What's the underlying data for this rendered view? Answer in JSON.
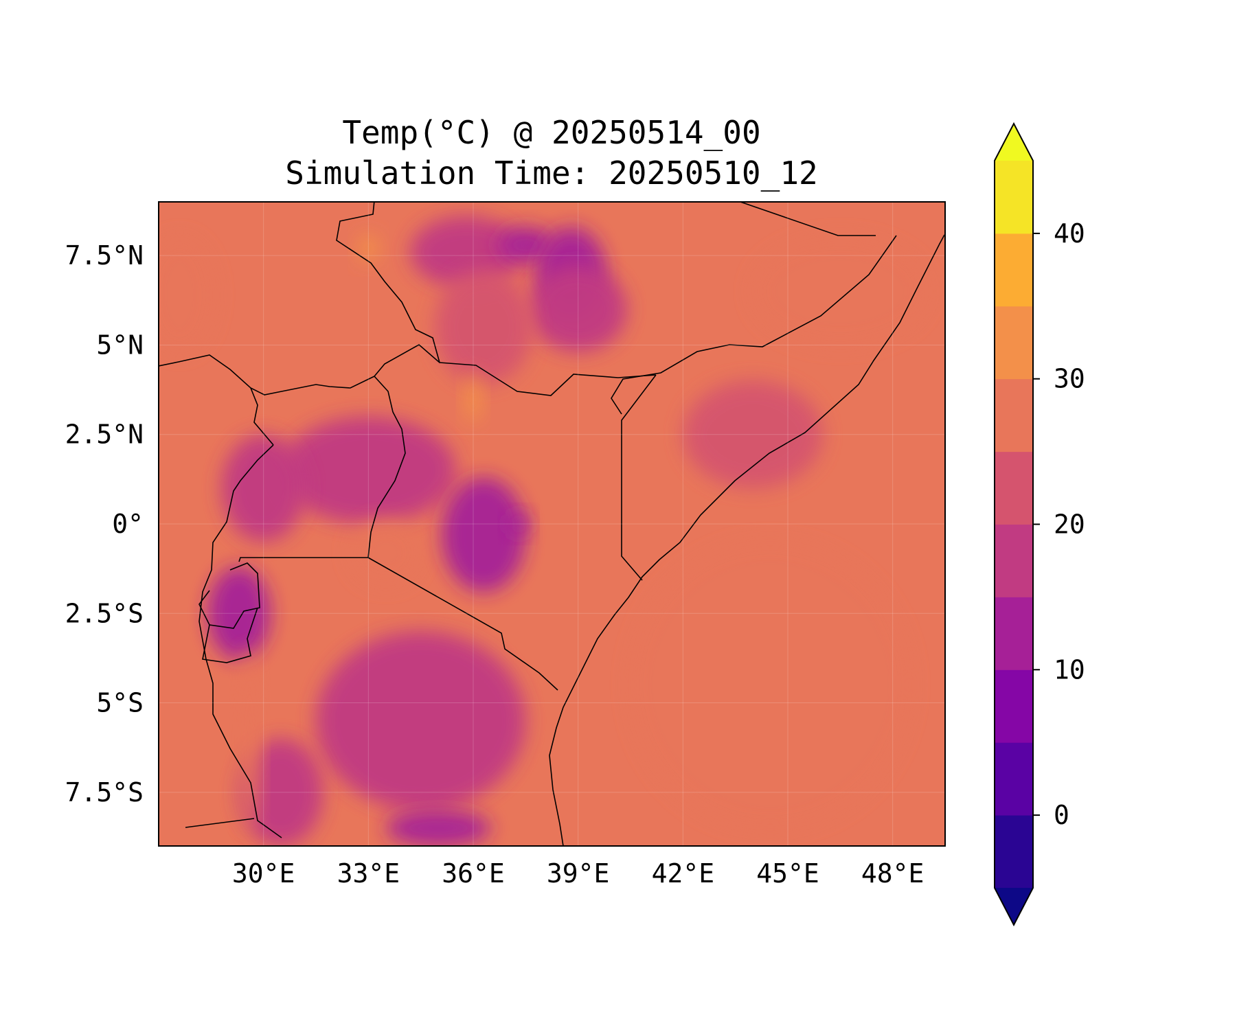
{
  "title": {
    "line1": "Temp(°C) @ 20250514_00",
    "line2": "Simulation Time: 20250510_12"
  },
  "map": {
    "lon_range": [
      27.0,
      49.5
    ],
    "lat_range": [
      -9.0,
      9.0
    ],
    "x_ticks": [
      {
        "lon": 30,
        "label": "30°E"
      },
      {
        "lon": 33,
        "label": "33°E"
      },
      {
        "lon": 36,
        "label": "36°E"
      },
      {
        "lon": 39,
        "label": "39°E"
      },
      {
        "lon": 42,
        "label": "42°E"
      },
      {
        "lon": 45,
        "label": "45°E"
      },
      {
        "lon": 48,
        "label": "48°E"
      }
    ],
    "y_ticks": [
      {
        "lat": 7.5,
        "label": "7.5°N"
      },
      {
        "lat": 5,
        "label": "5°N"
      },
      {
        "lat": 2.5,
        "label": "2.5°N"
      },
      {
        "lat": 0,
        "label": "0°"
      },
      {
        "lat": -2.5,
        "label": "2.5°S"
      },
      {
        "lat": -5,
        "label": "5°S"
      },
      {
        "lat": -7.5,
        "label": "7.5°S"
      }
    ],
    "gridlines": true,
    "background_color": "#e8765a"
  },
  "colorbar": {
    "levels": [
      -5,
      0,
      5,
      10,
      15,
      20,
      25,
      30,
      35,
      40,
      45
    ],
    "colors": [
      "#2a0593",
      "#5a02a4",
      "#8506a6",
      "#a62097",
      "#c13b82",
      "#d5546e",
      "#e8765a",
      "#f3904a",
      "#fcac33",
      "#f5e426"
    ],
    "under_color": "#0d0887",
    "over_color": "#f0f921",
    "extend": "both",
    "tick_values": [
      0,
      10,
      20,
      30,
      40
    ],
    "tick_labels": [
      "0",
      "10",
      "20",
      "30",
      "40"
    ]
  },
  "chart_data": {
    "type": "heatmap",
    "variable": "Temp(°C)",
    "valid_time": "20250514_00",
    "simulation_time": "20250510_12",
    "lon_range": [
      27.0,
      49.5
    ],
    "lat_range": [
      -9.0,
      9.0
    ],
    "value_range": [
      -5,
      45
    ],
    "regions": [
      {
        "lon": 27.6,
        "lat": 6.4,
        "value": 27,
        "rx": 1.0,
        "ry": 1.6
      },
      {
        "lon": 35.8,
        "lat": 7.6,
        "value": 15,
        "rx": 1.6,
        "ry": 1.0
      },
      {
        "lon": 37.5,
        "lat": 7.8,
        "value": 11,
        "rx": 0.8,
        "ry": 0.5
      },
      {
        "lon": 38.8,
        "lat": 7.0,
        "value": 13,
        "rx": 1.0,
        "ry": 1.3
      },
      {
        "lon": 39.0,
        "lat": 6.0,
        "value": 17,
        "rx": 1.4,
        "ry": 1.2
      },
      {
        "lon": 36.3,
        "lat": 5.5,
        "value": 20,
        "rx": 1.4,
        "ry": 1.6
      },
      {
        "lon": 36.0,
        "lat": 3.5,
        "value": 32,
        "rx": 0.25,
        "ry": 0.7
      },
      {
        "lon": 33.0,
        "lat": 7.7,
        "value": 30,
        "rx": 0.3,
        "ry": 0.4
      },
      {
        "lon": 33.0,
        "lat": 1.5,
        "value": 18,
        "rx": 2.5,
        "ry": 1.5
      },
      {
        "lon": 30.0,
        "lat": 1.0,
        "value": 18,
        "rx": 1.2,
        "ry": 1.5
      },
      {
        "lon": 33.5,
        "lat": -0.8,
        "value": 27,
        "rx": 1.0,
        "ry": 0.9
      },
      {
        "lon": 36.3,
        "lat": -0.3,
        "value": 13,
        "rx": 1.2,
        "ry": 1.6
      },
      {
        "lon": 37.3,
        "lat": 0.0,
        "value": 10,
        "rx": 0.3,
        "ry": 0.3
      },
      {
        "lon": 29.3,
        "lat": -2.5,
        "value": 14,
        "rx": 0.9,
        "ry": 1.3
      },
      {
        "lon": 34.5,
        "lat": -5.5,
        "value": 17,
        "rx": 3.0,
        "ry": 2.5
      },
      {
        "lon": 35.0,
        "lat": -8.5,
        "value": 14,
        "rx": 1.5,
        "ry": 0.5
      },
      {
        "lon": 30.5,
        "lat": -7.5,
        "value": 18,
        "rx": 1.2,
        "ry": 1.5
      },
      {
        "lon": 29.6,
        "lat": -6.0,
        "value": 27,
        "rx": 0.3,
        "ry": 2.5
      },
      {
        "lon": 44.0,
        "lat": 2.5,
        "value": 22,
        "rx": 2.0,
        "ry": 1.5
      },
      {
        "lon": 46.5,
        "lat": 6.5,
        "value": 27,
        "rx": 2.5,
        "ry": 1.5
      },
      {
        "lon": 44.5,
        "lat": -4.5,
        "value": 27,
        "rx": 4.0,
        "ry": 4.0
      }
    ]
  }
}
